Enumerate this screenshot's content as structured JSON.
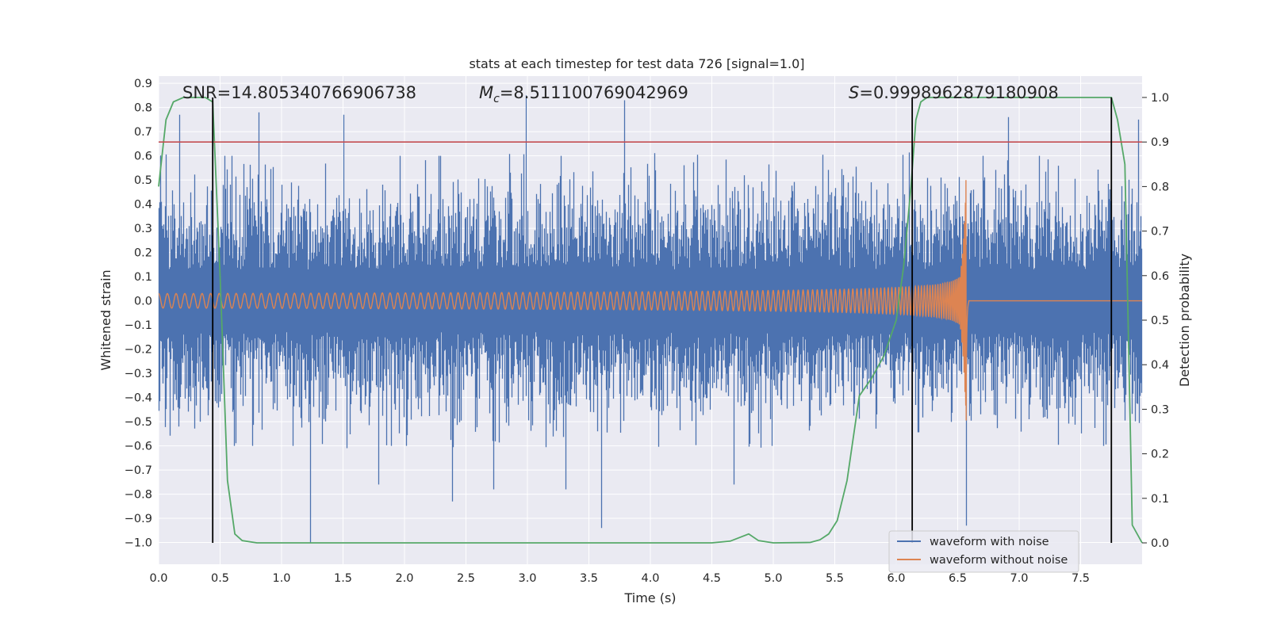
{
  "chart_data": {
    "type": "line",
    "title": "stats at each timestep for test data 726 [signal=1.0]",
    "xlabel": "Time (s)",
    "ylabel": "Whitened strain",
    "y2label": "Detection probability",
    "xlim": [
      0.0,
      8.0
    ],
    "ylim": [
      -1.09,
      0.93
    ],
    "y2lim": [
      -0.048,
      1.048
    ],
    "xticks": [
      "0.0",
      "0.5",
      "1.0",
      "1.5",
      "2.0",
      "2.5",
      "3.0",
      "3.5",
      "4.0",
      "4.5",
      "5.0",
      "5.5",
      "6.0",
      "6.5",
      "7.0",
      "7.5"
    ],
    "yticks": [
      "0.9",
      "0.8",
      "0.7",
      "0.6",
      "0.5",
      "0.4",
      "0.3",
      "0.2",
      "0.1",
      "0.0",
      "−0.1",
      "−0.2",
      "−0.3",
      "−0.4",
      "−0.5",
      "−0.6",
      "−0.7",
      "−0.8",
      "−0.9",
      "−1.0"
    ],
    "y2ticks": [
      "1.0",
      "0.9",
      "0.8",
      "0.7",
      "0.6",
      "0.5",
      "0.4",
      "0.3",
      "0.2",
      "0.1",
      "0.0"
    ],
    "annotations": {
      "snr": "SNR=14.805340766906738",
      "mc_symbol": "M",
      "mc_sub": "c",
      "mc_value": "=8.511100769042969",
      "s_symbol": "S",
      "s_value": "=0.9998962879180908"
    },
    "threshold": {
      "value": 0.9,
      "axis": "detection probability",
      "color": "#c44e52"
    },
    "vertical_markers": [
      0.44,
      6.13,
      7.75
    ],
    "legend": {
      "location": "lower right",
      "entries": [
        "waveform with noise",
        "waveform without noise"
      ]
    },
    "colors": {
      "noise": "#4c72b0",
      "clean": "#dd8452",
      "probability": "#55a868",
      "markers": "#000000",
      "threshold": "#c44e52",
      "axes_bg": "#eaeaf2",
      "grid": "#ffffff"
    },
    "series": [
      {
        "name": "waveform without noise",
        "description": "inspiral chirp; amplitude grows and frequency rises until merger",
        "amplitude_start": 0.03,
        "amplitude_peak": 0.5,
        "merger_time": 6.57
      },
      {
        "name": "waveform with noise",
        "typical_peak_positive": 0.6,
        "typical_peak_negative": -0.6,
        "spikes": [
          {
            "t": 0.17,
            "v": 0.77
          },
          {
            "t": 0.81,
            "v": 0.78
          },
          {
            "t": 1.5,
            "v": 0.77
          },
          {
            "t": 2.99,
            "v": 0.85
          },
          {
            "t": 3.79,
            "v": 0.83
          },
          {
            "t": 6.91,
            "v": 0.76
          },
          {
            "t": 7.97,
            "v": 0.75
          },
          {
            "t": 1.23,
            "v": -1.0
          },
          {
            "t": 3.6,
            "v": -0.94
          },
          {
            "t": 6.57,
            "v": -0.93
          },
          {
            "t": 1.79,
            "v": -0.76
          },
          {
            "t": 2.39,
            "v": -0.83
          },
          {
            "t": 2.72,
            "v": -0.78
          },
          {
            "t": 3.31,
            "v": -0.78
          },
          {
            "t": 4.68,
            "v": -0.76
          }
        ]
      },
      {
        "name": "detection probability",
        "x": [
          0.0,
          0.06,
          0.12,
          0.2,
          0.3,
          0.38,
          0.44,
          0.5,
          0.56,
          0.62,
          0.68,
          0.8,
          1.5,
          2.5,
          3.5,
          4.5,
          4.65,
          4.8,
          4.88,
          5.0,
          5.3,
          5.38,
          5.45,
          5.52,
          5.6,
          5.7,
          5.8,
          5.9,
          6.0,
          6.06,
          6.12,
          6.16,
          6.2,
          6.25,
          6.4,
          7.0,
          7.5,
          7.75,
          7.8,
          7.86,
          7.92,
          8.0
        ],
        "y": [
          0.8,
          0.95,
          0.99,
          1.0,
          1.0,
          1.0,
          0.99,
          0.6,
          0.14,
          0.02,
          0.005,
          0.0,
          0.0,
          0.0,
          0.0,
          0.0,
          0.004,
          0.02,
          0.005,
          0.0,
          0.001,
          0.007,
          0.02,
          0.05,
          0.14,
          0.33,
          0.37,
          0.42,
          0.5,
          0.62,
          0.8,
          0.95,
          0.99,
          1.0,
          1.0,
          1.0,
          1.0,
          1.0,
          0.95,
          0.85,
          0.04,
          0.0
        ]
      }
    ]
  }
}
